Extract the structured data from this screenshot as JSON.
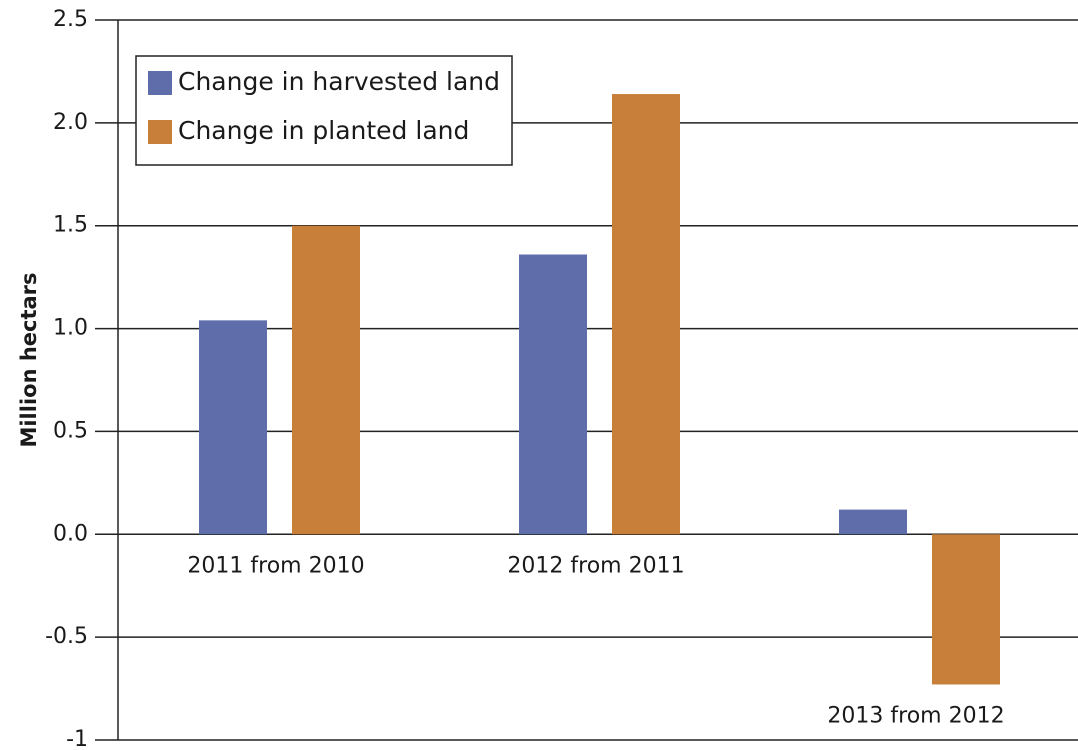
{
  "chart_data": {
    "type": "bar",
    "y_label": "Million hectars",
    "categories": [
      "2011 from 2010",
      "2012 from 2011",
      "2013 from 2012"
    ],
    "series": [
      {
        "name": "Change in harvested land",
        "color": "#5f6eab",
        "values": [
          1.04,
          1.36,
          0.12
        ]
      },
      {
        "name": "Change in planted land",
        "color": "#c77f3a",
        "values": [
          1.5,
          2.14,
          -0.73
        ]
      }
    ],
    "ylim": [
      -1,
      2.5
    ],
    "yticks": [
      -1,
      -0.5,
      {
        "value": 0,
        "label": "0.0"
      },
      0.5,
      {
        "value": 1,
        "label": "1.0"
      },
      1.5,
      {
        "value": 2,
        "label": "2.0"
      },
      2.5
    ],
    "grid": true,
    "legend": "top-left"
  }
}
